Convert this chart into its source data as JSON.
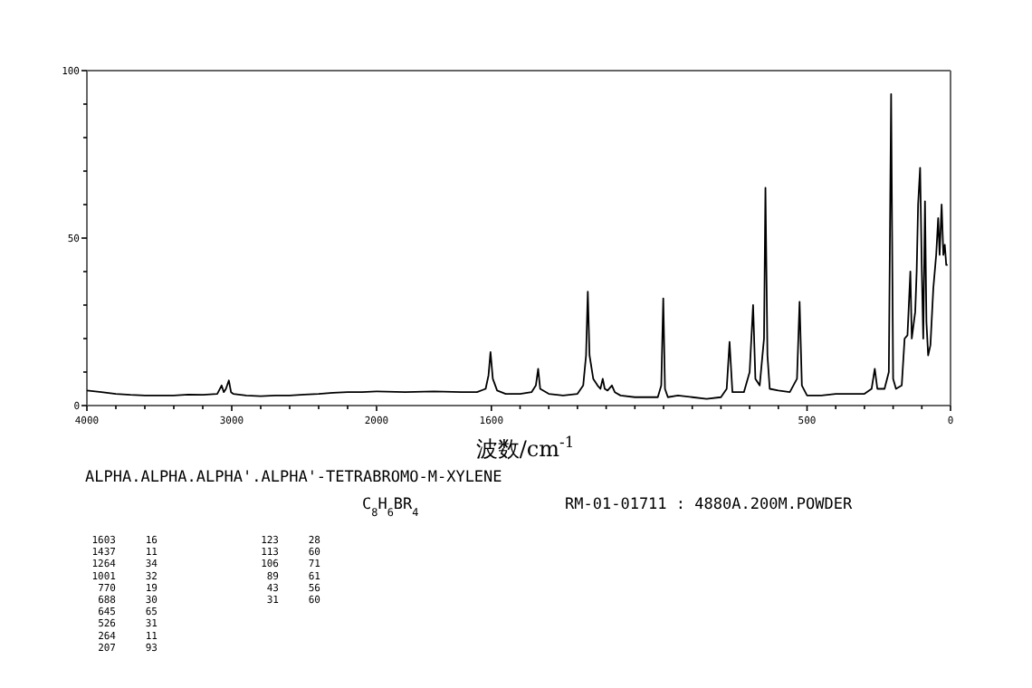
{
  "chart_data": [
    {
      "type": "line",
      "xlim": [
        4000,
        2000
      ],
      "ylim": [
        0,
        100
      ],
      "grid": false,
      "marker": "none",
      "line_style": "solid",
      "xticks": [
        4000,
        {
          "value": 3800,
          "label": null
        },
        {
          "value": 3600,
          "label": null
        },
        {
          "value": 3400,
          "label": null
        },
        {
          "value": 3200,
          "label": null
        },
        3000,
        {
          "value": 2800,
          "label": null
        },
        {
          "value": 2600,
          "label": null
        },
        {
          "value": 2400,
          "label": null
        },
        {
          "value": 2200,
          "label": null
        },
        2000
      ],
      "yticks": [
        0,
        {
          "value": 10,
          "label": null
        },
        {
          "value": 20,
          "label": null
        },
        {
          "value": 30,
          "label": null
        },
        {
          "value": 40,
          "label": null
        },
        50,
        {
          "value": 60,
          "label": null
        },
        {
          "value": 70,
          "label": null
        },
        {
          "value": 80,
          "label": null
        },
        {
          "value": 90,
          "label": null
        },
        100
      ],
      "annotations": [
        "ALPHA.ALPHA.ALPHA'.ALPHA'-TETRABROMO-M-XYLENE",
        "C$_{8}$H$_{6}$BR$_{4}$",
        "RM-01-01711 : 4880A.200M.POWDER",
        "1603",
        "16",
        "1437",
        "11",
        "1264",
        "34",
        "1001",
        "32",
        "770",
        "19",
        "688",
        "30",
        "645",
        "65",
        "526",
        "31",
        "264",
        "11",
        "207",
        "93",
        "123",
        "28",
        "113",
        "60",
        "106",
        "71",
        "89",
        "61",
        "43",
        "56",
        "31",
        "60"
      ],
      "series": [
        {
          "color": "#000000",
          "x": [
            4000,
            3900,
            3800,
            3700,
            3600,
            3500,
            3400,
            3300,
            3200,
            3100,
            3070,
            3055,
            3040,
            3020,
            3005,
            2990,
            2900,
            2800,
            2700,
            2600,
            2500,
            2400,
            2300,
            2200,
            2100,
            2000
          ],
          "values": [
            4.5,
            4,
            3.5,
            3.2,
            3,
            3,
            3,
            3.3,
            3.2,
            3.5,
            6,
            4,
            5,
            7.5,
            4,
            3.5,
            3,
            2.8,
            3,
            3,
            3.3,
            3.5,
            3.8,
            4,
            4,
            4.2
          ]
        }
      ]
    },
    {
      "type": "line",
      "xlim": [
        2000,
        0
      ],
      "ylim": [
        0,
        100
      ],
      "grid": false,
      "marker": "none",
      "line_style": "solid",
      "tick_labels": "x",
      "xlabel": "波数/cm$^{-1}$",
      "xticks": [
        1600,
        {
          "value": 1500,
          "label": null
        },
        {
          "value": 1400,
          "label": null
        },
        {
          "value": 1300,
          "label": null
        },
        {
          "value": 1200,
          "label": null
        },
        {
          "value": 1100,
          "label": null
        },
        {
          "value": 1000,
          "label": null
        },
        {
          "value": 900,
          "label": null
        },
        {
          "value": 800,
          "label": null
        },
        {
          "value": 700,
          "label": null
        },
        {
          "value": 600,
          "label": null
        },
        500,
        {
          "value": 400,
          "label": null
        },
        {
          "value": 300,
          "label": null
        },
        {
          "value": 200,
          "label": null
        },
        {
          "value": 100,
          "label": null
        },
        0
      ],
      "yticks": [
        0,
        {
          "value": 50,
          "label": null
        },
        {
          "value": 100,
          "label": null
        }
      ],
      "series": [
        {
          "color": "#000000",
          "x": [
            2000,
            1900,
            1800,
            1700,
            1650,
            1620,
            1610,
            1603,
            1595,
            1580,
            1550,
            1500,
            1460,
            1445,
            1437,
            1430,
            1400,
            1350,
            1300,
            1280,
            1270,
            1264,
            1258,
            1245,
            1230,
            1220,
            1212,
            1205,
            1195,
            1180,
            1170,
            1150,
            1100,
            1050,
            1020,
            1008,
            1001,
            995,
            985,
            950,
            900,
            850,
            800,
            780,
            770,
            760,
            720,
            700,
            688,
            680,
            665,
            650,
            645,
            638,
            630,
            600,
            560,
            535,
            526,
            518,
            500,
            450,
            400,
            350,
            300,
            275,
            264,
            255,
            230,
            215,
            207,
            200,
            190,
            170,
            160,
            150,
            140,
            135,
            123,
            118,
            113,
            106,
            100,
            95,
            89,
            84,
            78,
            70,
            60,
            50,
            43,
            38,
            31,
            25,
            20,
            15,
            10
          ],
          "values": [
            4.2,
            4,
            4.2,
            4,
            4,
            5,
            9,
            16,
            8,
            4.5,
            3.5,
            3.5,
            4,
            6,
            11,
            5,
            3.5,
            3,
            3.5,
            6,
            15,
            34,
            15,
            8,
            6,
            5,
            8,
            5,
            4.5,
            6,
            4,
            3,
            2.5,
            2.5,
            2.5,
            6,
            32,
            5,
            2.5,
            3,
            2.5,
            2,
            2.5,
            5,
            19,
            4,
            4,
            10,
            30,
            8,
            6,
            20,
            65,
            15,
            5,
            4.5,
            4,
            8,
            31,
            6,
            3,
            3,
            3.5,
            3.5,
            3.5,
            5,
            11,
            5,
            5,
            10,
            93,
            8,
            5,
            6,
            20,
            21,
            40,
            20,
            28,
            40,
            60,
            71,
            40,
            20,
            61,
            25,
            15,
            18,
            35,
            45,
            56,
            45,
            60,
            45,
            48,
            42,
            42
          ]
        }
      ]
    }
  ]
}
